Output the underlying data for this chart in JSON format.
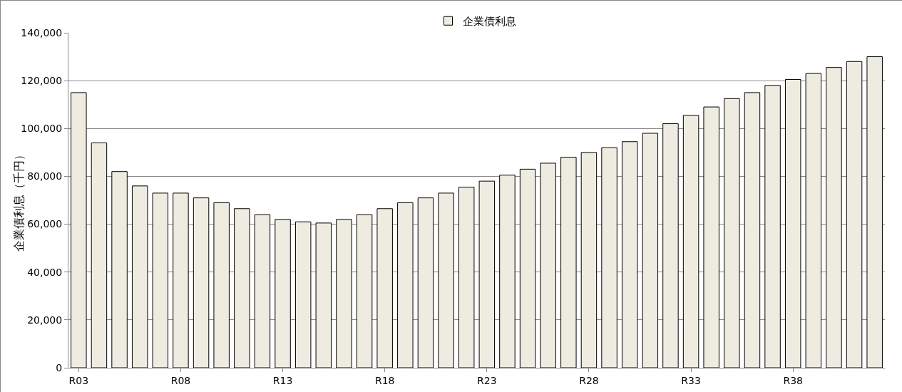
{
  "chart_data": {
    "type": "bar",
    "ylabel": "企業債利息（千円）",
    "categories": [
      "R03",
      null,
      null,
      null,
      null,
      "R08",
      null,
      null,
      null,
      null,
      "R13",
      null,
      null,
      null,
      null,
      "R18",
      null,
      null,
      null,
      null,
      "R23",
      null,
      null,
      null,
      null,
      "R28",
      null,
      null,
      null,
      null,
      "R33",
      null,
      null,
      null,
      null,
      "R38",
      null,
      null,
      null,
      null
    ],
    "series": [
      {
        "name": "企業債利息",
        "color": "#eeece1",
        "values": [
          115000,
          94000,
          82000,
          76000,
          73000,
          73000,
          71000,
          69000,
          66500,
          64000,
          62000,
          61000,
          60500,
          62000,
          64000,
          66500,
          69000,
          71000,
          73000,
          75500,
          78000,
          80500,
          83000,
          85500,
          88000,
          90000,
          92000,
          94500,
          98000,
          102000,
          105500,
          109000,
          112500,
          115000,
          118000,
          120500,
          123000,
          125500,
          128000,
          130000
        ]
      }
    ],
    "ylim": [
      0,
      140000
    ],
    "yticks": [
      {
        "value": 0,
        "label": "0"
      },
      {
        "value": 20000,
        "label": "20,000"
      },
      {
        "value": 40000,
        "label": "40,000"
      },
      {
        "value": 60000,
        "label": "60,000"
      },
      {
        "value": 80000,
        "label": "80,000"
      },
      {
        "value": 100000,
        "label": "100,000"
      },
      {
        "value": 120000,
        "label": "120,000"
      },
      {
        "value": 140000,
        "label": "140,000"
      }
    ],
    "grid": "y",
    "legend": "top"
  }
}
